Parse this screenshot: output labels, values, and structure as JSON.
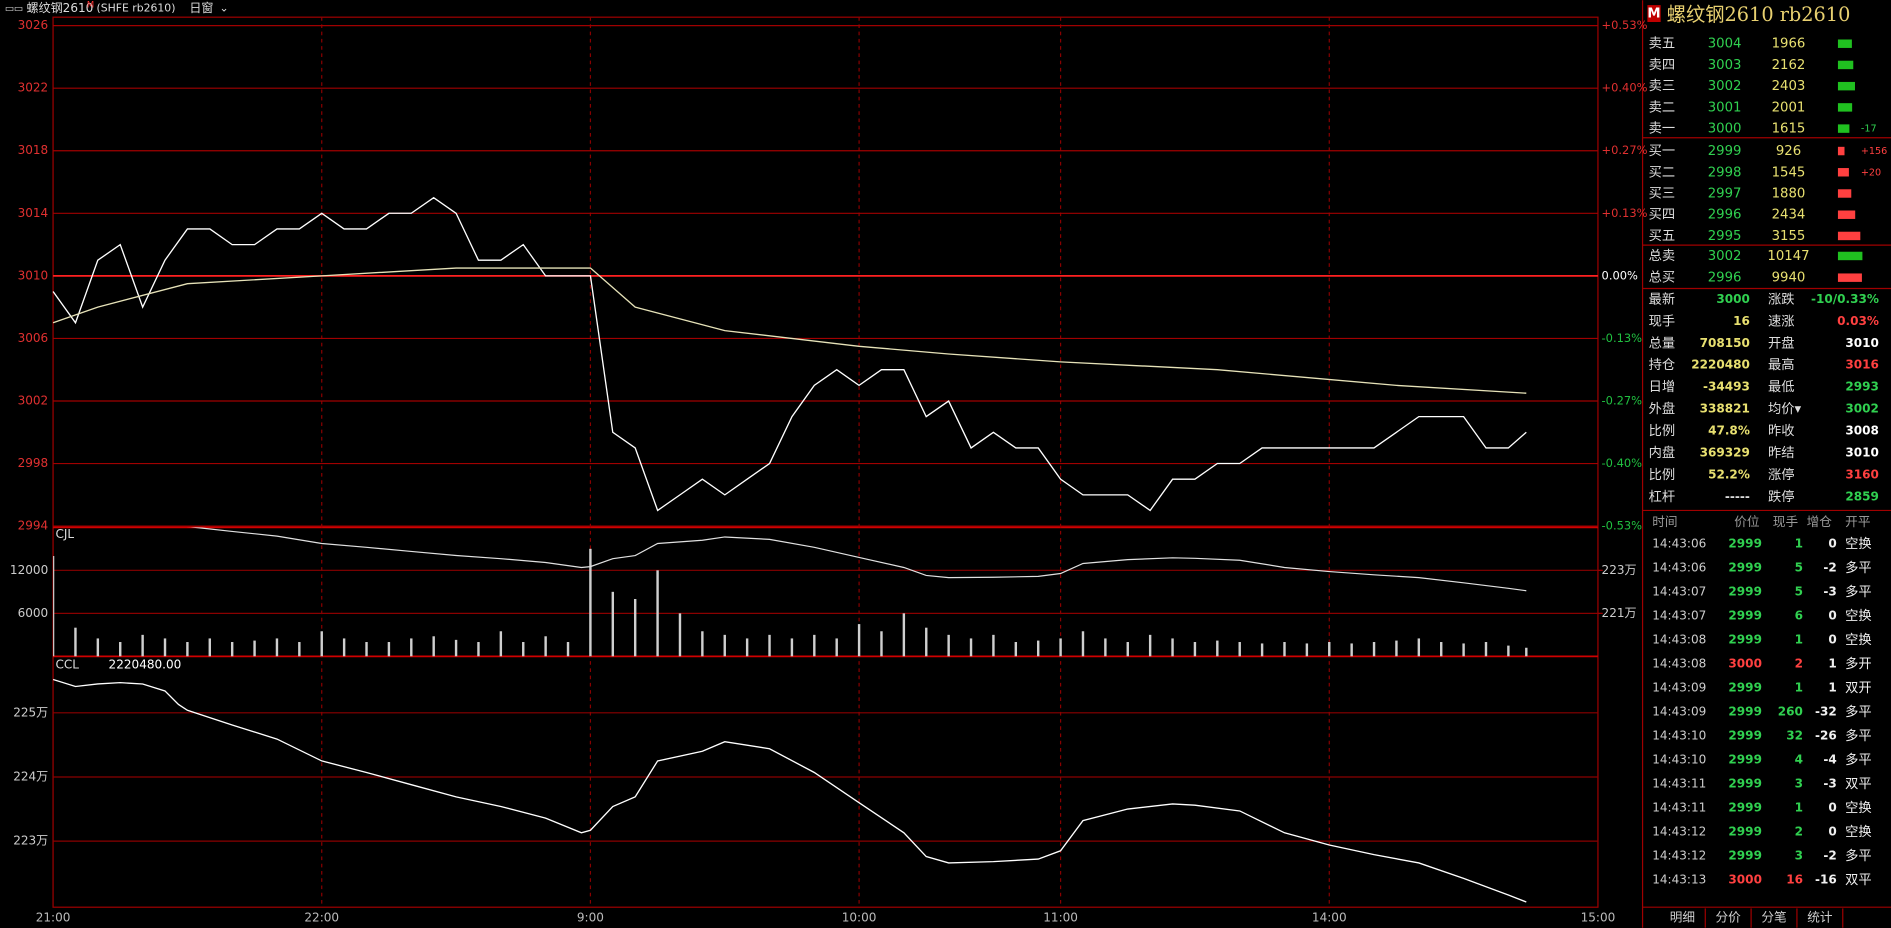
{
  "header": {
    "title": "螺纹钢2610",
    "flag": "M",
    "code": "(SHFE rb2610)",
    "period": "日窗"
  },
  "chart_data": [
    {
      "type": "line",
      "xlim": [
        0,
        345
      ],
      "xticks": [
        {
          "value": 0,
          "label": "21:00"
        },
        {
          "value": 60,
          "label": "22:00"
        },
        {
          "value": 120,
          "label": "9:00"
        },
        {
          "value": 180,
          "label": "10:00"
        },
        {
          "value": 225,
          "label": "11:00"
        },
        {
          "value": 285,
          "label": "14:00"
        },
        {
          "value": 345,
          "label": "15:00"
        }
      ],
      "ylim": [
        2994,
        3026
      ],
      "yticks": [
        3026,
        3022,
        3018,
        3014,
        3010,
        3006,
        3002,
        2998,
        2994
      ],
      "y2lim": [
        2994,
        3026
      ],
      "y2ticks": [
        {
          "value": 3026,
          "label": "+0.53%"
        },
        {
          "value": 3022,
          "label": "+0.40%"
        },
        {
          "value": 3018,
          "label": "+0.27%"
        },
        {
          "value": 3014,
          "label": "+0.13%"
        },
        {
          "value": 3010,
          "label": "0.00%"
        },
        {
          "value": 3006,
          "label": "-0.13%"
        },
        {
          "value": 3002,
          "label": "-0.27%"
        },
        {
          "value": 2998,
          "label": "-0.40%"
        },
        {
          "value": 2994,
          "label": "-0.53%"
        }
      ],
      "grid": true,
      "series": [
        {
          "color": "#ffffff",
          "x": [
            0,
            5,
            10,
            15,
            20,
            25,
            30,
            35,
            40,
            45,
            50,
            55,
            60,
            65,
            70,
            75,
            80,
            85,
            90,
            95,
            100,
            105,
            110,
            115,
            120,
            125,
            130,
            135,
            140,
            145,
            150,
            155,
            160,
            165,
            170,
            175,
            180,
            185,
            190,
            195,
            200,
            205,
            210,
            215,
            220,
            225,
            230,
            235,
            240,
            245,
            250,
            255,
            260,
            265,
            270,
            275,
            280,
            285,
            290,
            295,
            300,
            305,
            310,
            315,
            320,
            325,
            329
          ],
          "values": [
            3009,
            3007,
            3011,
            3012,
            3008,
            3011,
            3013,
            3013,
            3012,
            3012,
            3013,
            3013,
            3014,
            3013,
            3013,
            3014,
            3014,
            3015,
            3014,
            3011,
            3011,
            3012,
            3010,
            3010,
            3010,
            3000,
            2999,
            2995,
            2996,
            2997,
            2996,
            2997,
            2998,
            3001,
            3003,
            3004,
            3003,
            3004,
            3004,
            3001,
            3002,
            2999,
            3000,
            2999,
            2999,
            2997,
            2996,
            2996,
            2996,
            2995,
            2997,
            2997,
            2998,
            2998,
            2999,
            2999,
            2999,
            2999,
            2999,
            2999,
            3000,
            3001,
            3001,
            3001,
            2999,
            2999,
            3000
          ]
        },
        {
          "color": "#e6e2b8",
          "x": [
            0,
            10,
            30,
            60,
            90,
            120,
            130,
            150,
            180,
            200,
            225,
            260,
            300,
            329
          ],
          "values": [
            3007,
            3008,
            3009.5,
            3010,
            3010.5,
            3010.5,
            3008,
            3006.5,
            3005.5,
            3005,
            3004.5,
            3004,
            3003,
            3002.5
          ]
        }
      ]
    },
    {
      "type": "bar",
      "label": "CJL",
      "color": "#cfcfcf",
      "ylim": [
        0,
        18000
      ],
      "yticks": [
        12000,
        6000
      ],
      "y2lim": [
        2190000,
        2250000
      ],
      "y2ticks": [
        {
          "value": 2230000,
          "label": "223万"
        },
        {
          "value": 2210000,
          "label": "221万"
        }
      ],
      "values": [
        14000,
        4000,
        2500,
        2000,
        3000,
        2500,
        2000,
        2500,
        2000,
        2200,
        2500,
        2000,
        3500,
        2500,
        2000,
        2000,
        2500,
        2800,
        2300,
        2000,
        3500,
        2000,
        2800,
        2000,
        15000,
        9000,
        8000,
        12000,
        6000,
        3500,
        3000,
        2500,
        3000,
        2500,
        3000,
        2500,
        4500,
        3500,
        6000,
        4000,
        3000,
        2500,
        3000,
        2000,
        2200,
        2500,
        3500,
        2500,
        2000,
        3000,
        2500,
        2000,
        2200,
        2000,
        1800,
        2000,
        1800,
        2000,
        1800,
        2000,
        2200,
        2500,
        2000,
        1800,
        2000,
        1500,
        1200
      ]
    },
    {
      "type": "line",
      "label": "CCL",
      "current": "2220480.00",
      "ylim": [
        2219700,
        2258800
      ],
      "yticks": [
        {
          "value": 2250000,
          "label": "225万"
        },
        {
          "value": 2240000,
          "label": "224万"
        },
        {
          "value": 2230000,
          "label": "223万"
        }
      ],
      "series": [
        {
          "color": "#ffffff",
          "x": [
            0,
            5,
            10,
            15,
            20,
            25,
            28,
            30,
            40,
            50,
            60,
            70,
            80,
            90,
            100,
            110,
            118,
            120,
            125,
            130,
            135,
            145,
            150,
            160,
            170,
            180,
            190,
            195,
            200,
            210,
            220,
            225,
            230,
            240,
            250,
            255,
            265,
            275,
            285,
            295,
            305,
            315,
            325,
            329
          ],
          "values": [
            2255200,
            2254100,
            2254500,
            2254700,
            2254500,
            2253400,
            2251300,
            2250400,
            2248100,
            2245900,
            2242500,
            2240700,
            2238800,
            2236900,
            2235400,
            2233600,
            2231300,
            2231700,
            2235400,
            2236900,
            2242500,
            2244000,
            2245500,
            2244400,
            2240700,
            2236000,
            2231300,
            2227600,
            2226600,
            2226800,
            2227200,
            2228500,
            2233200,
            2235000,
            2235800,
            2235600,
            2234700,
            2231300,
            2229400,
            2227900,
            2226600,
            2224200,
            2221600,
            2220500
          ]
        }
      ]
    }
  ],
  "quote": {
    "flag": "M",
    "title": "螺纹钢2610 rb2610",
    "book": [
      {
        "label": "卖五",
        "price": 3004,
        "volume": 1966
      },
      {
        "label": "卖四",
        "price": 3003,
        "volume": 2162
      },
      {
        "label": "卖三",
        "price": 3002,
        "volume": 2403
      },
      {
        "label": "卖二",
        "price": 3001,
        "volume": 2001
      },
      {
        "label": "卖一",
        "price": 3000,
        "volume": 1615,
        "change": "-17"
      },
      {
        "label": "买一",
        "price": 2999,
        "volume": 926,
        "change": "+156"
      },
      {
        "label": "买二",
        "price": 2998,
        "volume": 1545,
        "change": "+20"
      },
      {
        "label": "买三",
        "price": 2997,
        "volume": 1880
      },
      {
        "label": "买四",
        "price": 2996,
        "volume": 2434
      },
      {
        "label": "买五",
        "price": 2995,
        "volume": 3155
      }
    ],
    "totals": [
      {
        "label": "总卖",
        "price": 3002,
        "volume": 10147
      },
      {
        "label": "总买",
        "price": 2996,
        "volume": 9940
      }
    ],
    "stats": [
      [
        "最新",
        "3000",
        "涨跌",
        "-10/0.33%"
      ],
      [
        "现手",
        "16",
        "速涨",
        "0.03%"
      ],
      [
        "总量",
        "708150",
        "开盘",
        "3010"
      ],
      [
        "持仓",
        "2220480",
        "最高",
        "3016"
      ],
      [
        "日增",
        "-34493",
        "最低",
        "2993"
      ],
      [
        "外盘",
        "338821",
        "均价▾",
        "3002"
      ],
      [
        "比例",
        "47.8%",
        "昨收",
        "3008"
      ],
      [
        "内盘",
        "369329",
        "昨结",
        "3010"
      ],
      [
        "比例",
        "52.2%",
        "涨停",
        "3160"
      ],
      [
        "杠杆",
        "-----",
        "跌停",
        "2859"
      ]
    ],
    "trades": {
      "header": [
        "时间",
        "价位",
        "现手",
        "增仓",
        "开平"
      ],
      "rows": [
        [
          "14:43:06",
          "2999",
          "1",
          "0",
          "空换"
        ],
        [
          "14:43:06",
          "2999",
          "5",
          "-2",
          "多平"
        ],
        [
          "14:43:07",
          "2999",
          "5",
          "-3",
          "多平"
        ],
        [
          "14:43:07",
          "2999",
          "6",
          "0",
          "空换"
        ],
        [
          "14:43:08",
          "2999",
          "1",
          "0",
          "空换"
        ],
        [
          "14:43:08",
          "3000",
          "2",
          "1",
          "多开"
        ],
        [
          "14:43:09",
          "2999",
          "1",
          "1",
          "双开"
        ],
        [
          "14:43:09",
          "2999",
          "260",
          "-32",
          "多平"
        ],
        [
          "14:43:10",
          "2999",
          "32",
          "-26",
          "多平"
        ],
        [
          "14:43:10",
          "2999",
          "4",
          "-4",
          "多平"
        ],
        [
          "14:43:11",
          "2999",
          "3",
          "-3",
          "双平"
        ],
        [
          "14:43:11",
          "2999",
          "1",
          "0",
          "空换"
        ],
        [
          "14:43:12",
          "2999",
          "2",
          "0",
          "空换"
        ],
        [
          "14:43:12",
          "2999",
          "3",
          "-2",
          "多平"
        ],
        [
          "14:43:13",
          "3000",
          "16",
          "-16",
          "双平"
        ]
      ]
    },
    "tabs": [
      "明细",
      "分价",
      "分笔",
      "统计"
    ]
  }
}
